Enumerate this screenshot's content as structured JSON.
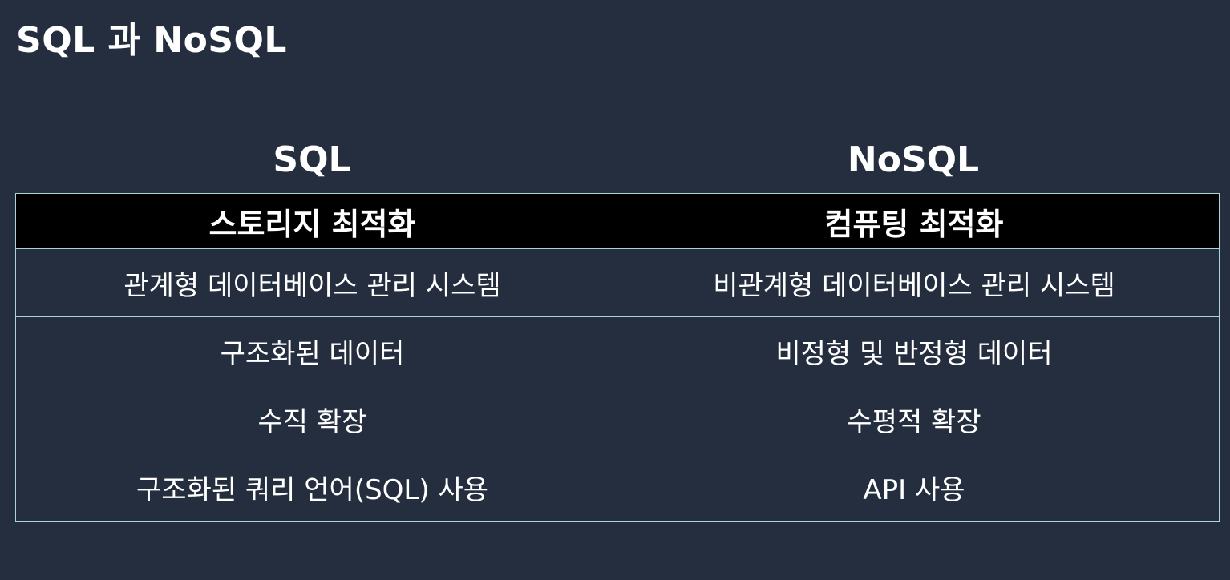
{
  "slide": {
    "title": "SQL 과 NoSQL"
  },
  "columns": {
    "left_heading": "SQL",
    "right_heading": "NoSQL"
  },
  "table": {
    "header": [
      "스토리지 최적화",
      "컴퓨팅 최적화"
    ],
    "rows": [
      [
        "관계형 데이터베이스 관리 시스템",
        "비관계형 데이터베이스 관리 시스템"
      ],
      [
        "구조화된 데이터",
        "비정형 및 반정형 데이터"
      ],
      [
        "수직 확장",
        "수평적 확장"
      ],
      [
        "구조화된 쿼리 언어(SQL) 사용",
        "API 사용"
      ]
    ]
  },
  "colors": {
    "background": "#242e3e",
    "header_row": "#000000",
    "border": "#a9d7d2",
    "text": "#ffffff"
  }
}
